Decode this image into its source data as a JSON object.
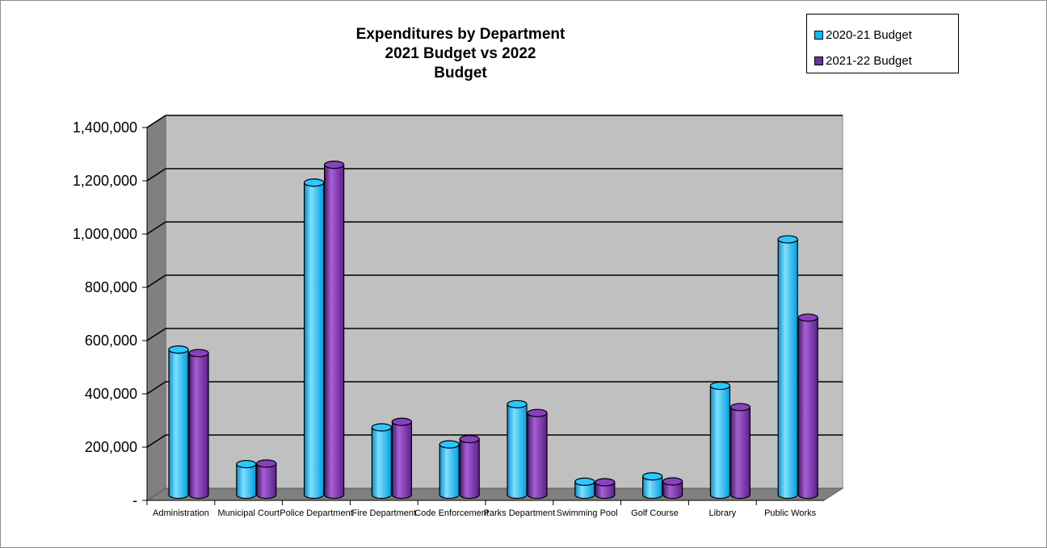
{
  "chart_data": {
    "type": "bar",
    "title_lines": [
      "Expenditures by Department",
      "2021 Budget vs 2022",
      "Budget"
    ],
    "categories": [
      "Administration",
      "Municipal Court",
      "Police Department",
      "Fire Department",
      "Code Enforcement",
      "Parks Department",
      "Swimming Pool",
      "Golf Course",
      "Library",
      "Public Works"
    ],
    "series": [
      {
        "name": "2020-21 Budget",
        "color": "#00bfff",
        "values": [
          548000,
          118000,
          1175000,
          256000,
          192000,
          343000,
          52000,
          72000,
          412000,
          962000
        ]
      },
      {
        "name": "2021-22 Budget",
        "color": "#7030a0",
        "values": [
          535000,
          120000,
          1242000,
          277000,
          212000,
          310000,
          50000,
          53000,
          332000,
          668000
        ]
      }
    ],
    "y_ticks": [
      "-",
      "200,000",
      "400,000",
      "600,000",
      "800,000",
      "1,000,000",
      "1,200,000",
      "1,400,000"
    ],
    "ylim": [
      0,
      1400000
    ],
    "grid": true,
    "legend_position": "top-right",
    "style": "3d-cylinder"
  }
}
